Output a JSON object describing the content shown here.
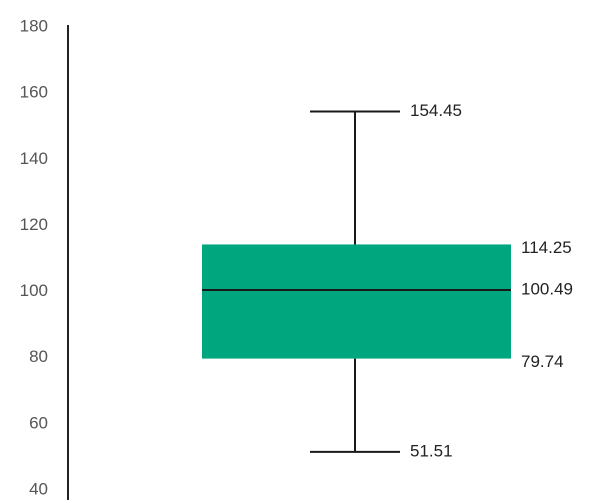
{
  "chart_data": {
    "type": "box",
    "title": "",
    "xlabel": "",
    "ylabel": "",
    "ylim": [
      40,
      180
    ],
    "y_ticks": [
      40,
      60,
      80,
      100,
      120,
      140,
      160,
      180
    ],
    "y_tick_labels": [
      "40",
      "60",
      "80",
      "100",
      "120",
      "140",
      "160",
      "180"
    ],
    "grid": false,
    "legend": "none",
    "series": [
      {
        "min": 51.51,
        "q1": 79.74,
        "median": 100.49,
        "q3": 114.25,
        "max": 154.45,
        "labels": {
          "min": "51.51",
          "q1": "79.74",
          "median": "100.49",
          "q3": "114.25",
          "max": "154.45"
        }
      }
    ],
    "colors": {
      "box_fill": "#00a67e",
      "lines": "#1a1a1a",
      "axis": "#222222",
      "tick_text": "#555555",
      "value_text": "#222222"
    }
  }
}
